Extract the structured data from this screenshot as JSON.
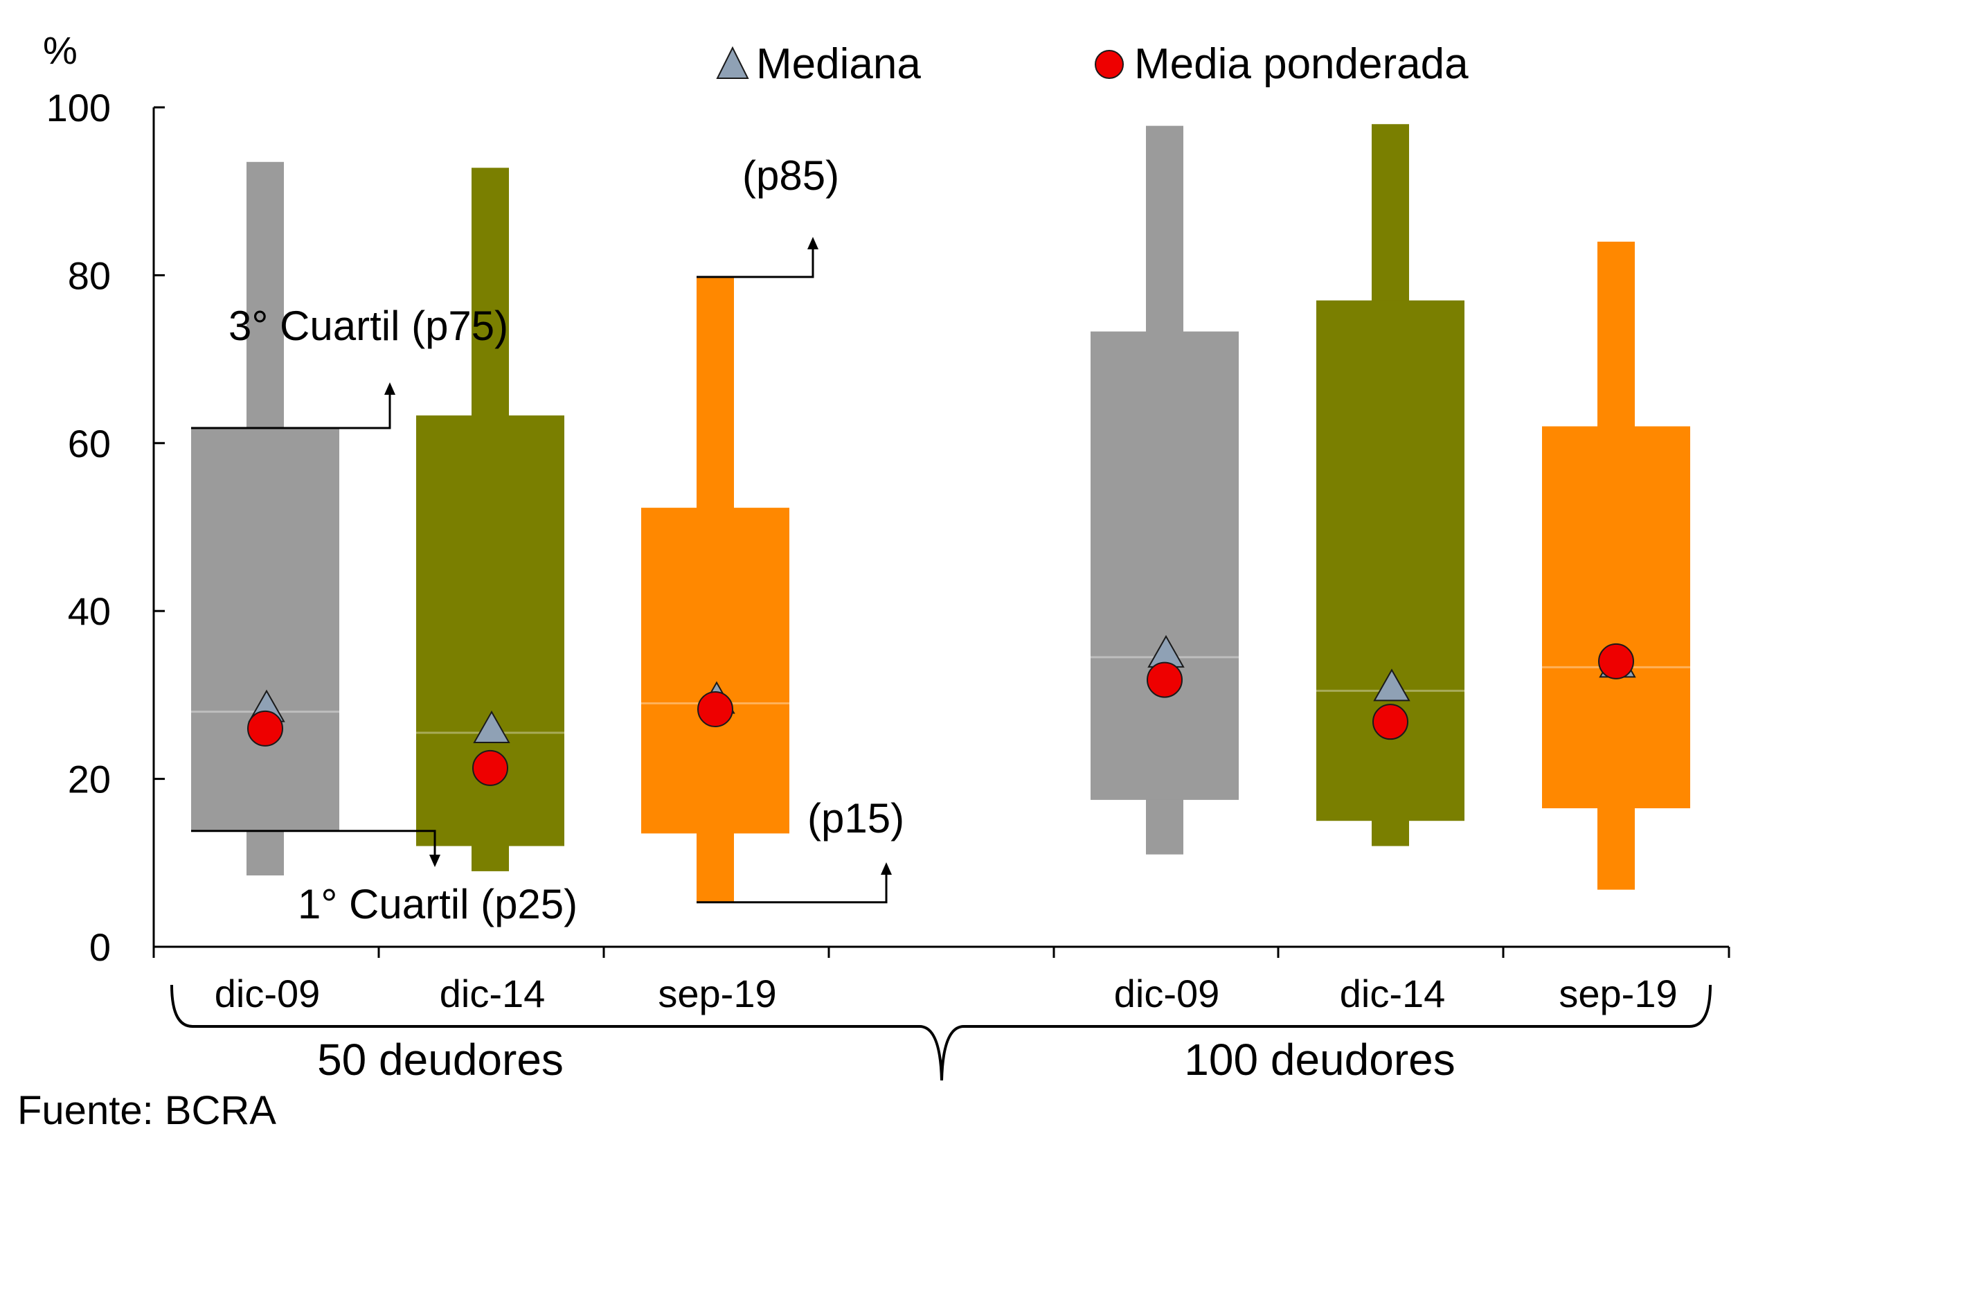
{
  "chart_data": {
    "type": "box",
    "title": "",
    "ylabel": "%",
    "ylim": [
      0,
      100
    ],
    "yticks": [
      0,
      20,
      40,
      60,
      80,
      100
    ],
    "legend": [
      {
        "key": "mediana",
        "label": "Mediana",
        "marker": "triangle",
        "color": "#8FA1B5"
      },
      {
        "key": "media",
        "label": "Media ponderada",
        "marker": "circle",
        "color": "#EE0000"
      }
    ],
    "series_colors": {
      "dic-09": "#9B9B9B",
      "dic-14": "#7A7F00",
      "sep-19": "#FF8800"
    },
    "groups": [
      {
        "label": "50 deudores",
        "items": [
          {
            "name": "dic-09",
            "p15": 8.5,
            "p25": 13.8,
            "median": 28.0,
            "p75": 61.8,
            "p85": 93.5,
            "wmean": 26.0
          },
          {
            "name": "dic-14",
            "p15": 9.0,
            "p25": 12.0,
            "median": 25.5,
            "p75": 63.3,
            "p85": 92.8,
            "wmean": 21.3
          },
          {
            "name": "sep-19",
            "p15": 5.3,
            "p25": 13.5,
            "median": 29.0,
            "p75": 52.3,
            "p85": 79.8,
            "wmean": 28.3
          }
        ]
      },
      {
        "label": "100 deudores",
        "items": [
          {
            "name": "dic-09",
            "p15": 11.0,
            "p25": 17.5,
            "median": 34.5,
            "p75": 73.3,
            "p85": 97.8,
            "wmean": 31.8
          },
          {
            "name": "dic-14",
            "p15": 12.0,
            "p25": 15.0,
            "median": 30.5,
            "p75": 77.0,
            "p85": 98.0,
            "wmean": 26.8
          },
          {
            "name": "sep-19",
            "p15": 6.8,
            "p25": 16.5,
            "median": 33.3,
            "p75": 62.0,
            "p85": 84.0,
            "wmean": 34.0
          }
        ]
      }
    ],
    "annotations": {
      "p75": "3° Cuartil (p75)",
      "p25": "1° Cuartil (p25)",
      "p85": "(p85)",
      "p15": "(p15)"
    }
  },
  "source": "Fuente: BCRA"
}
